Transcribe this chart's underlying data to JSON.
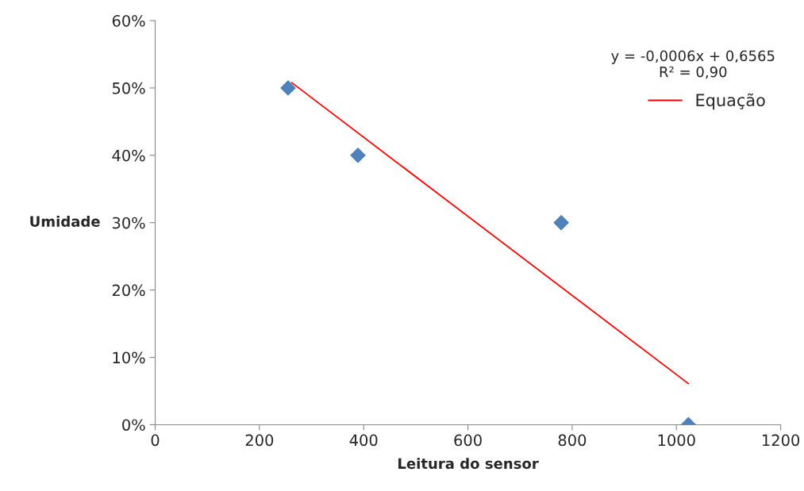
{
  "chart_data": {
    "type": "scatter",
    "xlabel": "Leitura do sensor",
    "ylabel": "Umidade",
    "xlim": [
      0,
      1200
    ],
    "xticks": [
      0,
      200,
      400,
      600,
      800,
      1000,
      1200
    ],
    "ylim": [
      0,
      60
    ],
    "yticks": [
      {
        "value": 0,
        "label": "0%"
      },
      {
        "value": 10,
        "label": "10%"
      },
      {
        "value": 20,
        "label": "20%"
      },
      {
        "value": 30,
        "label": "30%"
      },
      {
        "value": 40,
        "label": "40%"
      },
      {
        "value": 50,
        "label": "50%"
      },
      {
        "value": 60,
        "label": "60%"
      }
    ],
    "grid": false,
    "legend": "right",
    "annotations": [
      "y = -0,0006x + 0,6565\nR² = 0,90"
    ],
    "series": [
      {
        "marker": "diamond",
        "color": "#4f81bd",
        "x": [
          255,
          389,
          779,
          1023
        ],
        "values": [
          50,
          40,
          30,
          0
        ]
      },
      {
        "type": "line",
        "name": "Equação",
        "color": "#ff0000",
        "x": [
          262,
          1023
        ],
        "values": [
          50.8,
          6.1
        ]
      }
    ]
  }
}
